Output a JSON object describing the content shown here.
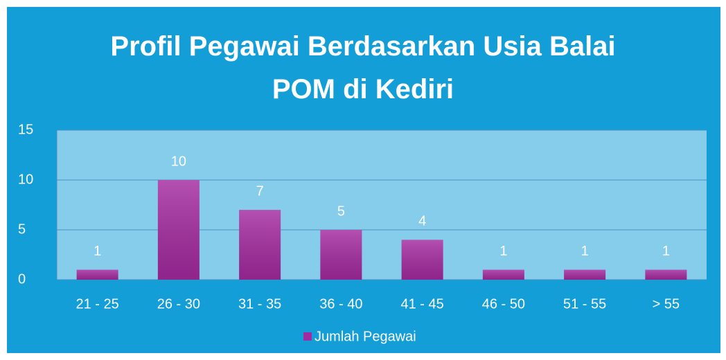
{
  "chart_data": {
    "type": "bar",
    "title": "Profil Pegawai Berdasarkan Usia Balai POM di Kediri",
    "categories": [
      "21 - 25",
      "26 - 30",
      "31 - 35",
      "36 - 40",
      "41 - 45",
      "46 - 50",
      "51 - 55",
      "> 55"
    ],
    "series": [
      {
        "name": "Jumlah Pegawai",
        "color": "#a32a9f",
        "values": [
          1,
          10,
          7,
          5,
          4,
          1,
          1,
          1
        ]
      }
    ],
    "ylim": [
      0,
      15
    ],
    "yticks": [
      0,
      5,
      10,
      15
    ],
    "grid": true,
    "legend": "bottom"
  }
}
